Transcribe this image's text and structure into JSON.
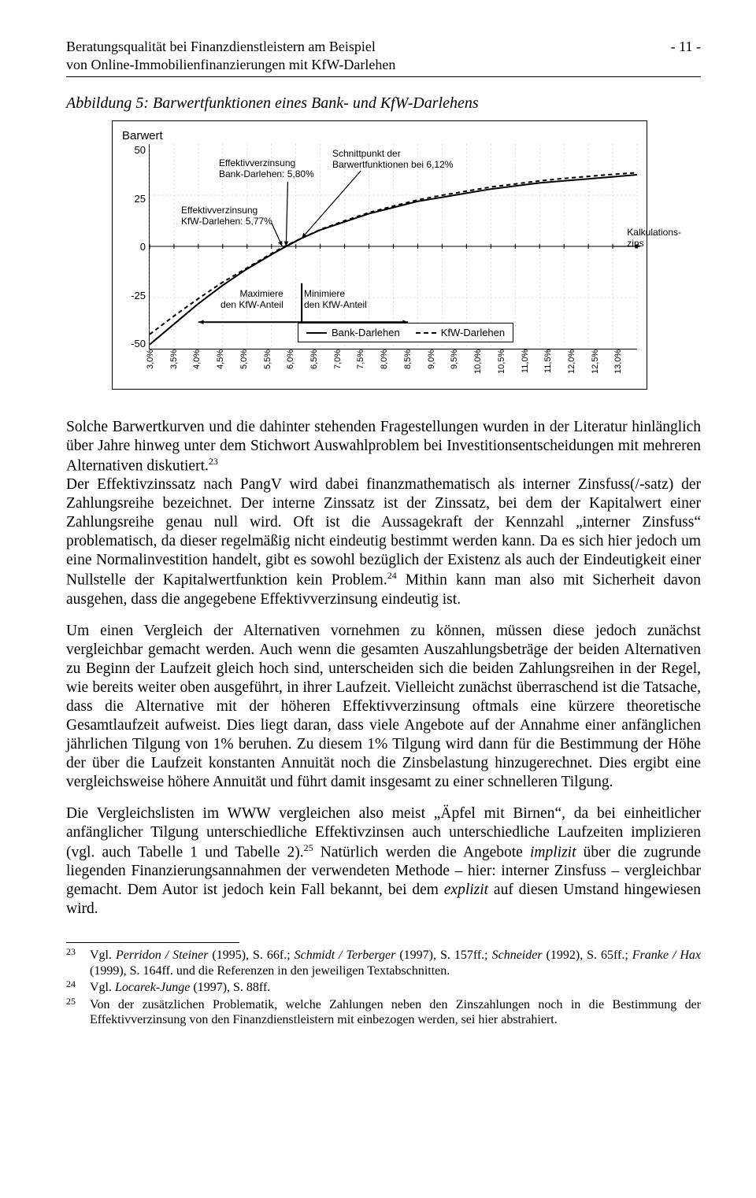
{
  "header": {
    "left_line1": "Beratungsqualität bei Finanzdienstleistern am Beispiel",
    "left_line2": "von Online-Immobilienfinanzierungen mit KfW-Darlehen",
    "page_no": "- 11 -"
  },
  "figure": {
    "caption": "Abbildung 5: Barwertfunktionen eines Bank- und KfW-Darlehens",
    "y_title": "Barwert",
    "ylim": [
      -50,
      50
    ],
    "yticks": [
      "50",
      "25",
      "0",
      "-25",
      "-50"
    ],
    "xlim_pct": [
      3.0,
      13.0
    ],
    "xticks": [
      "3,0%",
      "3,5%",
      "4,0%",
      "4,5%",
      "5,0%",
      "5,5%",
      "6,0%",
      "6,5%",
      "7,0%",
      "7,5%",
      "8,0%",
      "8,5%",
      "9,0%",
      "9,5%",
      "10,0%",
      "10,5%",
      "11,0%",
      "11,5%",
      "12,0%",
      "12,5%",
      "13,0%"
    ],
    "annot_bank_eff": "Effektivverzinsung\nBank-Darlehen: 5,80%",
    "annot_kfw_eff": "Effektivverzinsung\nKfW-Darlehen: 5,77%",
    "annot_intersect": "Schnittpunkt der\nBarwertfunktionen bei 6,12%",
    "annot_kalk": "Kalkulations-\nzins",
    "annot_max": "Maximiere\nden KfW-Anteil",
    "annot_min": "Minimiere\nden KfW-Anteil",
    "legend_bank": "Bank-Darlehen",
    "legend_kfw": "KfW-Darlehen",
    "series": {
      "bank": {
        "type": "line",
        "stroke": "#000000",
        "stroke_width": 2,
        "dash": "none",
        "points_xy": [
          [
            3.0,
            -48
          ],
          [
            3.5,
            -38
          ],
          [
            4.0,
            -28
          ],
          [
            4.5,
            -19
          ],
          [
            5.0,
            -11
          ],
          [
            5.5,
            -4
          ],
          [
            5.8,
            0
          ],
          [
            6.12,
            4
          ],
          [
            6.5,
            8
          ],
          [
            7.0,
            12
          ],
          [
            7.5,
            16
          ],
          [
            8.0,
            19
          ],
          [
            8.5,
            22
          ],
          [
            9.0,
            24
          ],
          [
            9.5,
            26
          ],
          [
            10.0,
            28
          ],
          [
            10.5,
            29.5
          ],
          [
            11.0,
            31
          ],
          [
            11.5,
            32
          ],
          [
            12.0,
            33
          ],
          [
            12.5,
            34
          ],
          [
            13.0,
            35
          ]
        ]
      },
      "kfw": {
        "type": "line",
        "stroke": "#000000",
        "stroke_width": 2,
        "dash": "5,4",
        "points_xy": [
          [
            3.0,
            -43
          ],
          [
            3.5,
            -34
          ],
          [
            4.0,
            -25.5
          ],
          [
            4.5,
            -17.5
          ],
          [
            5.0,
            -10.5
          ],
          [
            5.5,
            -3.5
          ],
          [
            5.77,
            0
          ],
          [
            6.12,
            4
          ],
          [
            6.5,
            8.2
          ],
          [
            7.0,
            12.5
          ],
          [
            7.5,
            16.5
          ],
          [
            8.0,
            19.7
          ],
          [
            8.5,
            22.7
          ],
          [
            9.0,
            25
          ],
          [
            9.5,
            27
          ],
          [
            10.0,
            29
          ],
          [
            10.5,
            30.5
          ],
          [
            11.0,
            32
          ],
          [
            11.5,
            33.2
          ],
          [
            12.0,
            34.2
          ],
          [
            12.5,
            35.2
          ],
          [
            13.0,
            36
          ]
        ]
      }
    },
    "markers": {
      "bank_eff_x": 5.8,
      "kfw_eff_x": 5.77,
      "intersect_x": 6.12,
      "intersect_y": 4
    },
    "style": {
      "background_color": "#ffffff",
      "grid_color": "#bfbfbf",
      "font_family": "Arial",
      "title_fontsize": 15,
      "axis_fontsize": 13,
      "xtick_fontsize": 11
    }
  },
  "paragraphs": {
    "p1a": "Solche Barwertkurven und die dahinter stehenden Fragestellungen wurden in der Literatur hinlänglich über Jahre hinweg unter dem Stichwort Auswahlproblem bei Investitionsentscheidungen mit mehreren Alternativen diskutiert.",
    "p1b": "Der Effektivzinssatz nach PangV wird dabei finanzmathematisch als interner Zinsfuss(/-satz) der Zahlungsreihe bezeichnet. Der interne Zinssatz ist der Zinssatz, bei dem der Kapitalwert einer Zahlungsreihe genau null wird. Oft ist die Aussagekraft der Kennzahl „interner Zinsfuss“ problematisch, da dieser regelmäßig nicht eindeutig bestimmt werden kann. Da es sich hier jedoch um eine Normalinvestition handelt, gibt es sowohl bezüglich der Existenz als auch der Eindeutigkeit einer Nullstelle der Kapitalwertfunktion kein Problem.",
    "p1c": " Mithin kann man also mit Sicherheit davon ausgehen, dass die angegebene Effektivverzinsung eindeutig ist.",
    "p2a": "Um einen Vergleich der Alternativen vornehmen zu können, müssen diese jedoch zunächst vergleichbar gemacht werden. Auch wenn die gesamten Auszahlungsbeträge der beiden Alternativen zu Beginn der Laufzeit gleich hoch sind, unterscheiden sich die beiden Zahlungsreihen in der Regel, wie bereits weiter oben ausgeführt, in ihrer Laufzeit. Vielleicht zunächst überraschend ist die Tatsache, dass die Alternative mit der höheren Effektivverzinsung oftmals eine kürzere theoretische Gesamtlaufzeit aufweist. Dies liegt daran, dass viele Angebote auf der Annahme einer anfänglichen jährlichen Tilgung von 1% beruhen. Zu diesem 1% Tilgung wird dann für die Bestimmung der Höhe der über die Laufzeit konstanten Annuität noch die Zinsbelastung hinzugerechnet. Dies ergibt eine vergleichsweise höhere Annuität und führt damit insgesamt zu einer schnelleren Tilgung.",
    "p3a": "Die Vergleichslisten im WWW vergleichen also meist „Äpfel mit Birnen“, da bei einheitlicher anfänglicher Tilgung unterschiedliche Effektivzinsen auch unterschiedliche Laufzeiten implizieren (vgl. auch Tabelle 1 und Tabelle 2).",
    "p3b": " Natürlich werden die Angebote ",
    "p3c_it": "implizit",
    "p3d": " über die zugrunde liegenden Finanzierungsannahmen der verwendeten Methode – hier: interner Zinsfuss – vergleichbar gemacht. Dem Autor ist jedoch kein Fall bekannt, bei dem ",
    "p3e_it": "explizit",
    "p3f": " auf diesen Umstand hingewiesen wird."
  },
  "superscripts": {
    "s23": "23",
    "s24": "24",
    "s25": "25"
  },
  "footnotes": {
    "n23": "23",
    "t23": "Vgl. Perridon / Steiner (1995), S. 66f.; Schmidt / Terberger (1997), S. 157ff.; Schneider (1992), S. 65ff.; Franke / Hax (1999), S. 164ff. und die Referenzen in den jeweiligen Textabschnitten.",
    "n24": "24",
    "t24": "Vgl. Locarek-Junge (1997), S. 88ff.",
    "n25": "25",
    "t25": "Von der zusätzlichen Problematik, welche Zahlungen neben den Zinszahlungen noch in die Bestimmung der Effektivverzinsung von den Finanzdienstleistern mit einbezogen werden, sei hier abstrahiert."
  }
}
